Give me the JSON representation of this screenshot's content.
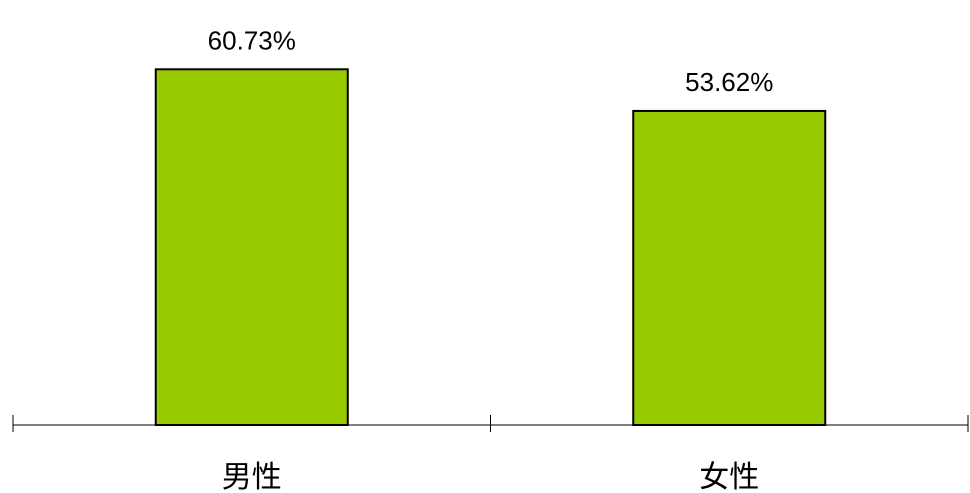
{
  "chart_data": {
    "type": "bar",
    "categories": [
      "男性",
      "女性"
    ],
    "values": [
      60.73,
      53.62
    ],
    "value_labels": [
      "60.73%",
      "53.62%"
    ],
    "unit": "%",
    "title": "",
    "xlabel": "",
    "ylabel": "",
    "ylim": [
      0,
      70
    ],
    "grid": false,
    "legend": "none",
    "bar_color": "#99CC00"
  }
}
